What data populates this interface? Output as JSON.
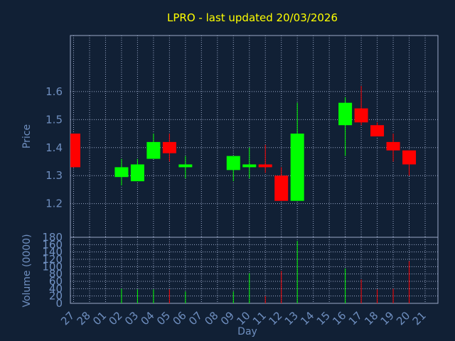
{
  "chart_data": {
    "type": "candlestick",
    "title": "LPRO - last updated 20/03/2026",
    "xlabel": "Day",
    "price_panel": {
      "ylabel": "Price",
      "yticks": [
        1.2,
        1.3,
        1.4,
        1.5,
        1.6
      ],
      "ylim": [
        1.08,
        1.8
      ]
    },
    "volume_panel": {
      "ylabel": "Volume (0000)",
      "yticks": [
        0,
        20,
        40,
        60,
        80,
        100,
        120,
        140,
        160,
        180
      ],
      "ylim": [
        0,
        180
      ]
    },
    "categories": [
      "27",
      "28",
      "01",
      "02",
      "03",
      "04",
      "05",
      "06",
      "07",
      "08",
      "09",
      "10",
      "11",
      "12",
      "13",
      "14",
      "15",
      "16",
      "17",
      "18",
      "19",
      "20",
      "21"
    ],
    "candles": [
      {
        "day": "27",
        "open": 1.45,
        "close": 1.33,
        "high": 1.45,
        "low": 1.33,
        "volume": 0
      },
      {
        "day": "02",
        "open": 1.295,
        "close": 1.33,
        "high": 1.36,
        "low": 1.265,
        "volume": 40
      },
      {
        "day": "03",
        "open": 1.28,
        "close": 1.34,
        "high": 1.36,
        "low": 1.28,
        "volume": 38
      },
      {
        "day": "04",
        "open": 1.36,
        "close": 1.42,
        "high": 1.45,
        "low": 1.36,
        "volume": 38
      },
      {
        "day": "05",
        "open": 1.42,
        "close": 1.38,
        "high": 1.45,
        "low": 1.35,
        "volume": 38
      },
      {
        "day": "06",
        "open": 1.33,
        "close": 1.34,
        "high": 1.37,
        "low": 1.29,
        "volume": 32
      },
      {
        "day": "09",
        "open": 1.32,
        "close": 1.37,
        "high": 1.37,
        "low": 1.28,
        "volume": 32
      },
      {
        "day": "10",
        "open": 1.33,
        "close": 1.34,
        "high": 1.4,
        "low": 1.29,
        "volume": 82
      },
      {
        "day": "11",
        "open": 1.34,
        "close": 1.33,
        "high": 1.41,
        "low": 1.31,
        "volume": 20
      },
      {
        "day": "12",
        "open": 1.3,
        "close": 1.21,
        "high": 1.33,
        "low": 1.21,
        "volume": 88
      },
      {
        "day": "13",
        "open": 1.21,
        "close": 1.45,
        "high": 1.56,
        "low": 1.21,
        "volume": 170
      },
      {
        "day": "16",
        "open": 1.48,
        "close": 1.56,
        "high": 1.58,
        "low": 1.37,
        "volume": 95
      },
      {
        "day": "17",
        "open": 1.54,
        "close": 1.49,
        "high": 1.62,
        "low": 1.48,
        "volume": 65
      },
      {
        "day": "18",
        "open": 1.48,
        "close": 1.44,
        "high": 1.49,
        "low": 1.44,
        "volume": 38
      },
      {
        "day": "19",
        "open": 1.42,
        "close": 1.39,
        "high": 1.45,
        "low": 1.35,
        "volume": 40
      },
      {
        "day": "20",
        "open": 1.39,
        "close": 1.34,
        "high": 1.39,
        "low": 1.3,
        "volume": 115
      }
    ],
    "colors": {
      "background": "#112035",
      "up": "#00ff00",
      "down": "#ff0000",
      "title": "#ffff00",
      "text": "#6f8fc0",
      "grid": "#9aa8c8"
    },
    "grid": true
  }
}
